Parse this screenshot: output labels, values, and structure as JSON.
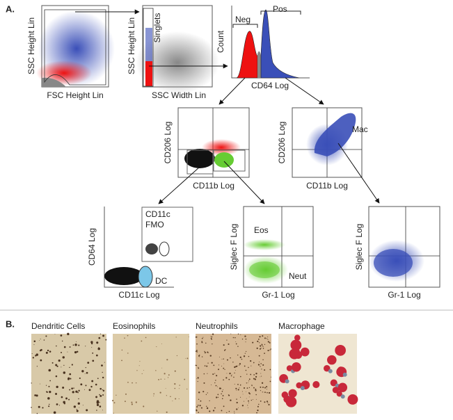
{
  "panel_a": {
    "label": "A.",
    "plots": [
      {
        "y_label": "SSC Height Lin",
        "x_label": "FSC Height Lin"
      },
      {
        "y_label": "SSC Height Lin",
        "x_label": "SSC Width Lin",
        "gate": "Singlets"
      },
      {
        "y_label": "Count",
        "x_label": "CD64 Log",
        "gates": [
          "Neg",
          "Pos"
        ]
      },
      {
        "y_label": "CD206 Log",
        "x_label": "CD11b Log"
      },
      {
        "y_label": "CD206 Log",
        "x_label": "CD11b Log",
        "gate": "Mac"
      },
      {
        "y_label": "CD64 Log",
        "x_label": "CD11c Log",
        "inset": [
          "CD11c",
          "FMO"
        ],
        "gate": "DC"
      },
      {
        "y_label": "Siglec F Log",
        "x_label": "Gr-1 Log",
        "gates": [
          "Eos",
          "Neut"
        ]
      },
      {
        "y_label": "Siglec F Log",
        "x_label": "Gr-1 Log"
      }
    ]
  },
  "panel_b": {
    "label": "B.",
    "images": [
      {
        "caption": "Dendritic Cells"
      },
      {
        "caption": "Eosinophils"
      },
      {
        "caption": "Neutrophils"
      },
      {
        "caption": "Macrophage"
      }
    ]
  }
}
